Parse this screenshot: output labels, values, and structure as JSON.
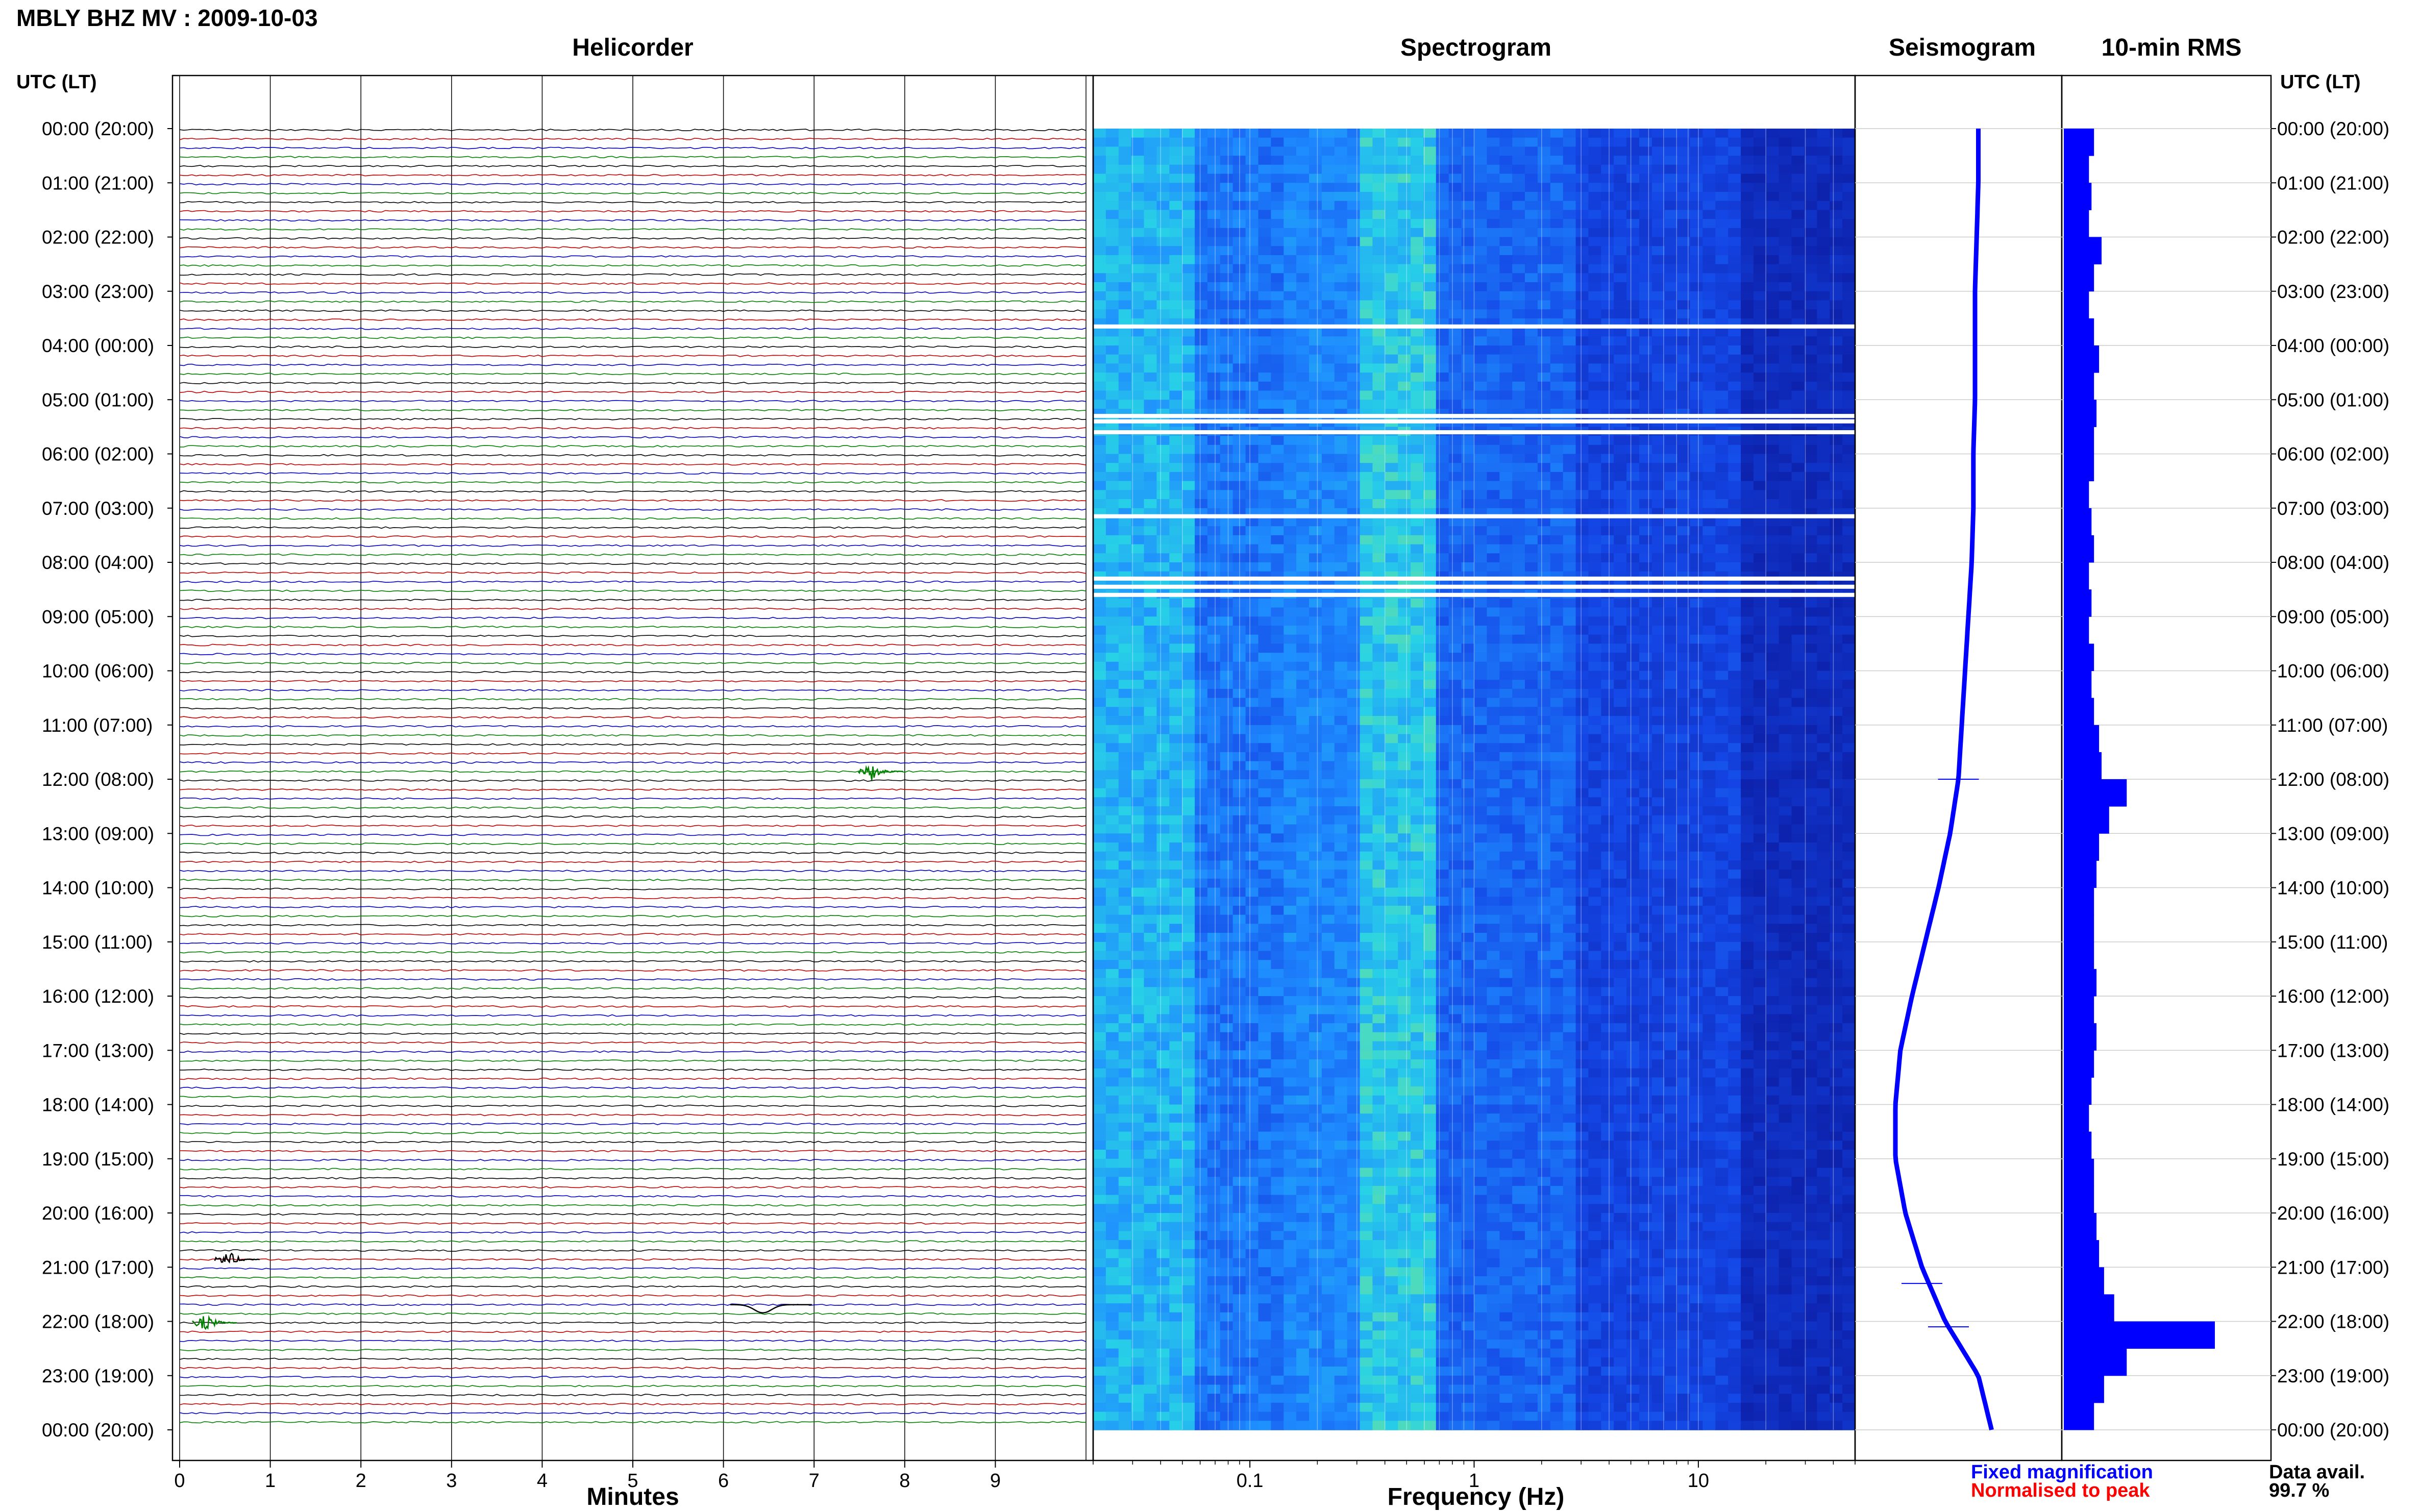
{
  "station_title": "MBLY BHZ MV : 2009-10-03",
  "panels": {
    "helicorder": "Helicorder",
    "spectrogram": "Spectrogram",
    "seismogram": "Seismogram",
    "rms": "10-min RMS"
  },
  "utc_header": "UTC (LT)",
  "time_labels": [
    "00:00 (20:00)",
    "01:00 (21:00)",
    "02:00 (22:00)",
    "03:00 (23:00)",
    "04:00 (00:00)",
    "05:00 (01:00)",
    "06:00 (02:00)",
    "07:00 (03:00)",
    "08:00 (04:00)",
    "09:00 (05:00)",
    "10:00 (06:00)",
    "11:00 (07:00)",
    "12:00 (08:00)",
    "13:00 (09:00)",
    "14:00 (10:00)",
    "15:00 (11:00)",
    "16:00 (12:00)",
    "17:00 (13:00)",
    "18:00 (14:00)",
    "19:00 (15:00)",
    "20:00 (16:00)",
    "21:00 (17:00)",
    "22:00 (18:00)",
    "23:00 (19:00)",
    "00:00 (20:00)"
  ],
  "legend": {
    "fixed": "Fixed magnification",
    "normalised": "Normalised to peak",
    "data_avail_label": "Data avail.",
    "data_avail_value": "99.7 %"
  },
  "colors": {
    "trace_cycle": [
      "#000000",
      "#c00000",
      "#0000c0",
      "#008000"
    ],
    "seismogram": "#0000ff",
    "rms": "#0000ff",
    "fixed": "#0000ff",
    "normalised": "#ff0000"
  },
  "chart_data": [
    {
      "type": "line",
      "title": "Helicorder",
      "xlabel": "Minutes",
      "x_ticks": [
        "0",
        "1",
        "2",
        "3",
        "4",
        "5",
        "6",
        "7",
        "8",
        "9"
      ],
      "xlim": [
        0,
        10
      ],
      "rows_per_hour": 6,
      "hours": 24,
      "y_labels": "time_labels",
      "events": [
        {
          "hour": 11,
          "row": 5,
          "minute": 7.6,
          "label_color": "green"
        },
        {
          "hour": 20,
          "row": 5,
          "minute": 0.5,
          "label_color": "black"
        },
        {
          "hour": 21,
          "row": 4,
          "minute": 6.3,
          "label_color": "black"
        },
        {
          "hour": 22,
          "row": 0,
          "minute": 0.25,
          "label_color": "green"
        }
      ]
    },
    {
      "type": "heatmap",
      "title": "Spectrogram",
      "xlabel": "Frequency (Hz)",
      "x_scale": "log",
      "x_ticks": [
        "0.1",
        "1",
        "10"
      ],
      "xlim": [
        0.02,
        50
      ],
      "gaps_hours": [
        3.65,
        5.3,
        5.4,
        5.6,
        7.15,
        8.3,
        8.45,
        8.6
      ]
    },
    {
      "type": "line",
      "title": "Seismogram",
      "hours": [
        0,
        1,
        2,
        3,
        4,
        5,
        6,
        7,
        8,
        9,
        10,
        11,
        12,
        13,
        14,
        15,
        16,
        17,
        18,
        19,
        20,
        21,
        22,
        23,
        24
      ],
      "relative_amplitude": [
        0.62,
        0.62,
        0.61,
        0.6,
        0.6,
        0.6,
        0.59,
        0.59,
        0.58,
        0.56,
        0.54,
        0.52,
        0.5,
        0.45,
        0.38,
        0.3,
        0.22,
        0.15,
        0.12,
        0.12,
        0.18,
        0.28,
        0.42,
        0.62,
        0.7
      ]
    },
    {
      "type": "bar",
      "title": "10-min RMS",
      "hours": [
        0,
        0.5,
        1,
        1.5,
        2,
        2.5,
        3,
        3.5,
        4,
        4.5,
        5,
        5.5,
        6,
        6.5,
        7,
        7.5,
        8,
        8.5,
        9,
        9.5,
        10,
        10.5,
        11,
        11.5,
        12,
        12.5,
        13,
        13.5,
        14,
        14.5,
        15,
        15.5,
        16,
        16.5,
        17,
        17.5,
        18,
        18.5,
        19,
        19.5,
        20,
        20.5,
        21,
        21.5,
        22,
        22.5,
        23,
        23.5
      ],
      "values": [
        0.12,
        0.1,
        0.11,
        0.1,
        0.15,
        0.12,
        0.1,
        0.12,
        0.14,
        0.12,
        0.13,
        0.12,
        0.12,
        0.1,
        0.11,
        0.12,
        0.1,
        0.11,
        0.1,
        0.12,
        0.11,
        0.12,
        0.14,
        0.15,
        0.25,
        0.18,
        0.14,
        0.13,
        0.12,
        0.12,
        0.12,
        0.13,
        0.12,
        0.13,
        0.12,
        0.11,
        0.1,
        0.11,
        0.12,
        0.12,
        0.13,
        0.14,
        0.16,
        0.2,
        0.6,
        0.25,
        0.16,
        0.12
      ]
    }
  ]
}
